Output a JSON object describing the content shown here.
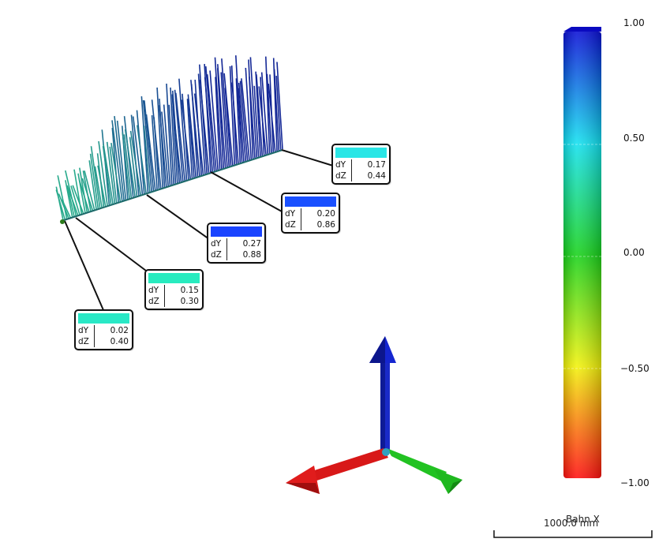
{
  "callouts": [
    {
      "color": "#29e8c6",
      "dY_label": "dY",
      "dY": "0.02",
      "dZ_label": "dZ",
      "dZ": "0.40"
    },
    {
      "color": "#28ebbf",
      "dY_label": "dY",
      "dY": "0.15",
      "dZ_label": "dZ",
      "dZ": "0.30"
    },
    {
      "color": "#1a44ff",
      "dY_label": "dY",
      "dY": "0.27",
      "dZ_label": "dZ",
      "dZ": "0.88"
    },
    {
      "color": "#1a50ff",
      "dY_label": "dY",
      "dY": "0.20",
      "dZ_label": "dZ",
      "dZ": "0.86"
    },
    {
      "color": "#2ae6e6",
      "dY_label": "dY",
      "dY": "0.17",
      "dZ_label": "dZ",
      "dZ": "0.44"
    }
  ],
  "colorbar": {
    "ticks": [
      "1.00",
      "0.50",
      "0.00",
      "−0.50",
      "−1.00"
    ],
    "gradient": [
      "#0a10d6",
      "#12e0f0",
      "#18d21a",
      "#f2f20a",
      "#ff1010"
    ]
  },
  "scale_bar": {
    "title": "Bahn X",
    "length": "1000.0 mm"
  },
  "axes": {
    "x_color": "#e21a1a",
    "y_color": "#18b818",
    "z_color": "#1420c8"
  }
}
